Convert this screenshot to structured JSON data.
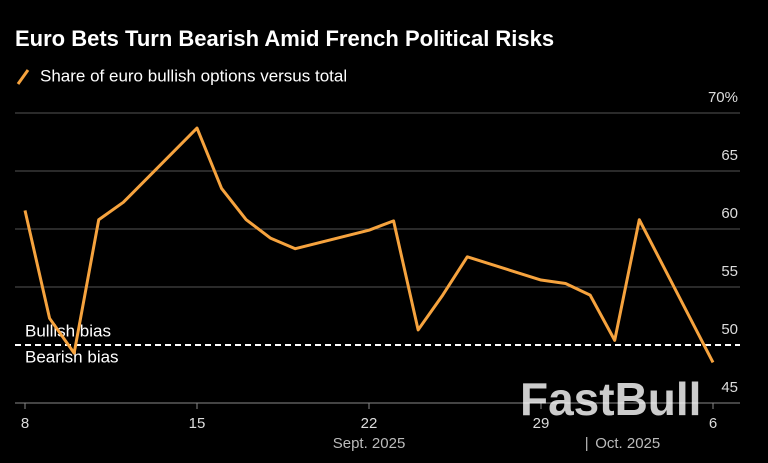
{
  "chart_data": {
    "type": "line",
    "title": "Euro Bets Turn Bearish Amid French Political Risks",
    "x": [
      "2025-09-08",
      "2025-09-09",
      "2025-09-10",
      "2025-09-11",
      "2025-09-12",
      "2025-09-15",
      "2025-09-16",
      "2025-09-17",
      "2025-09-18",
      "2025-09-19",
      "2025-09-22",
      "2025-09-23",
      "2025-09-24",
      "2025-09-25",
      "2025-09-26",
      "2025-09-29",
      "2025-09-30",
      "2025-10-01",
      "2025-10-02",
      "2025-10-03",
      "2025-10-06"
    ],
    "series": [
      {
        "name": "Share of euro bullish options versus total",
        "color": "#f6a33e",
        "values": [
          61.6,
          52.3,
          49.3,
          60.8,
          62.3,
          68.7,
          63.5,
          60.8,
          59.2,
          58.3,
          59.9,
          60.7,
          51.3,
          54.3,
          57.6,
          55.6,
          55.3,
          54.3,
          50.4,
          60.8,
          48.5
        ]
      }
    ],
    "xticks": [
      {
        "value": "2025-09-08",
        "label": "8"
      },
      {
        "value": "2025-09-15",
        "label": "15"
      },
      {
        "value": "2025-09-22",
        "label": "22"
      },
      {
        "value": "2025-09-29",
        "label": "29"
      },
      {
        "value": "2025-10-06",
        "label": "6"
      }
    ],
    "month_labels": [
      {
        "value": "2025-09-22",
        "label": "Sept. 2025"
      },
      {
        "value": "2025-10-02",
        "label": "Oct. 2025"
      }
    ],
    "ylim": [
      45,
      70
    ],
    "yticks": [
      45,
      50,
      55,
      60,
      65,
      {
        "value": 70,
        "label": "70%"
      }
    ],
    "grid": true,
    "reference_line": {
      "value": 50,
      "label_above": "Bullish bias",
      "label_below": "Bearish bias"
    },
    "watermark": "FastBull"
  }
}
